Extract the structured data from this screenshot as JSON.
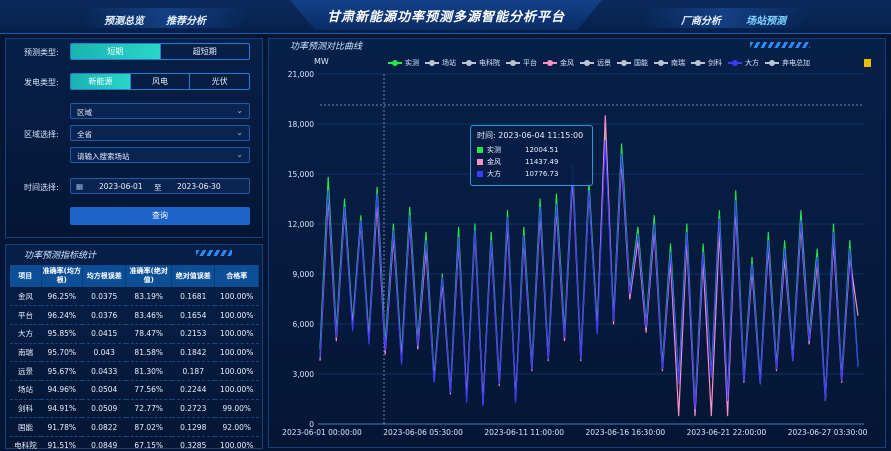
{
  "header": {
    "title": "甘肃新能源功率预测多源智能分析平台",
    "nav_left": [
      "预测总览",
      "推荐分析"
    ],
    "nav_right": [
      "厂商分析",
      "场站预测"
    ],
    "active_tab": "场站预测"
  },
  "form": {
    "forecast_type_label": "预测类型:",
    "forecast_types": [
      "短期",
      "超短期"
    ],
    "gen_type_label": "发电类型:",
    "gen_types": [
      "新能源",
      "风电",
      "光伏"
    ],
    "region_label": "区域选择:",
    "region_select1": "区域",
    "region_select2": "全省",
    "station_placeholder": "请输入搜索场站",
    "time_label": "时间选择:",
    "date_start": "2023-06-01",
    "date_sep": "至",
    "date_end": "2023-06-30",
    "query_label": "查询"
  },
  "stats": {
    "title": "功率预测指标统计",
    "headers": [
      "项目",
      "准确率(均方根)",
      "均方根误差",
      "准确率(绝对值)",
      "绝对值误差",
      "合格率"
    ],
    "rows": [
      [
        "金风",
        "96.25%",
        "0.0375",
        "83.19%",
        "0.1681",
        "100.00%"
      ],
      [
        "平台",
        "96.24%",
        "0.0376",
        "83.46%",
        "0.1654",
        "100.00%"
      ],
      [
        "大方",
        "95.85%",
        "0.0415",
        "78.47%",
        "0.2153",
        "100.00%"
      ],
      [
        "南瑞",
        "95.70%",
        "0.043",
        "81.58%",
        "0.1842",
        "100.00%"
      ],
      [
        "远景",
        "95.67%",
        "0.0433",
        "81.30%",
        "0.187",
        "100.00%"
      ],
      [
        "场站",
        "94.96%",
        "0.0504",
        "77.56%",
        "0.2244",
        "100.00%"
      ],
      [
        "剑科",
        "94.91%",
        "0.0509",
        "72.77%",
        "0.2723",
        "99.00%"
      ],
      [
        "国能",
        "91.78%",
        "0.0822",
        "87.02%",
        "0.1298",
        "92.00%"
      ],
      [
        "电科院",
        "91.51%",
        "0.0849",
        "67.15%",
        "0.3285",
        "100.00%"
      ]
    ]
  },
  "chart_panel": {
    "title": "功率预测对比曲线",
    "unit": "MW",
    "legend": [
      {
        "name": "实测",
        "color": "#22e64a"
      },
      {
        "name": "场站",
        "color": "#b9c3d6"
      },
      {
        "name": "电科院",
        "color": "#b9c3d6"
      },
      {
        "name": "平台",
        "color": "#b9c3d6"
      },
      {
        "name": "金风",
        "color": "#ff8fc8"
      },
      {
        "name": "远景",
        "color": "#b9c3d6"
      },
      {
        "name": "国能",
        "color": "#b9c3d6"
      },
      {
        "name": "南瑞",
        "color": "#b9c3d6"
      },
      {
        "name": "剑科",
        "color": "#b9c3d6"
      },
      {
        "name": "大方",
        "color": "#3b3bff"
      },
      {
        "name": "弃电总加",
        "color": "#b9c3d6"
      }
    ],
    "tooltip": {
      "time": "时间: 2023-06-04 11:15:00",
      "rows": [
        {
          "name": "实测",
          "value": "12004.51",
          "color": "#22e64a"
        },
        {
          "name": "金风",
          "value": "11437.49",
          "color": "#ff8fc8"
        },
        {
          "name": "大方",
          "value": "10776.73",
          "color": "#3b3bff"
        }
      ]
    }
  },
  "chart_data": {
    "type": "line",
    "ylim": [
      0,
      21000
    ],
    "yticks": [
      "0",
      "3,000",
      "6,000",
      "9,000",
      "12,000",
      "15,000",
      "18,000",
      "21,000"
    ],
    "xticks": [
      "2023-06-01 00:00:00",
      "2023-06-06 05:30:00",
      "2023-06-11 11:00:00",
      "2023-06-16 16:30:00",
      "2023-06-21 22:00:00",
      "2023-06-27 03:30:00"
    ],
    "ylabel": "MW",
    "series": [
      {
        "name": "实测",
        "color": "#22e64a",
        "values": [
          4500,
          14800,
          5500,
          13500,
          6000,
          12500,
          5200,
          14200,
          4800,
          12000,
          4000,
          13000,
          5000,
          11500,
          2800,
          9000,
          2000,
          11800,
          1500,
          12000,
          1200,
          11500,
          2500,
          12800,
          1400,
          11800,
          3500,
          13500,
          4000,
          13800,
          5500,
          15500,
          4000,
          14500,
          5800,
          17500,
          6500,
          16800,
          8000,
          11800,
          6000,
          12500,
          3500,
          10800,
          2600,
          12000,
          1000,
          10800,
          3000,
          12800,
          1500,
          14000,
          2800,
          10000,
          2600,
          11500,
          3500,
          11000,
          4000,
          12800,
          5200,
          10500,
          1500,
          12000,
          2800,
          11000,
          3500
        ]
      },
      {
        "name": "金风",
        "color": "#ff8fc8",
        "values": [
          3800,
          13600,
          5000,
          12800,
          5800,
          12000,
          5000,
          13200,
          4200,
          11200,
          3800,
          12200,
          4500,
          10500,
          2600,
          8500,
          1800,
          10900,
          1600,
          11400,
          1300,
          10800,
          2300,
          12000,
          1500,
          11000,
          3200,
          12600,
          3800,
          12900,
          5000,
          14800,
          3800,
          13900,
          5500,
          18500,
          6000,
          15800,
          7500,
          11000,
          5500,
          11600,
          3200,
          9800,
          500,
          11000,
          500,
          9800,
          500,
          11600,
          500,
          12900,
          2500,
          9200,
          2400,
          10600,
          3200,
          10000,
          3800,
          11800,
          4800,
          9600,
          1400,
          11000,
          2500,
          10000,
          6500
        ]
      },
      {
        "name": "大方",
        "color": "#3b3bff",
        "values": [
          4000,
          14000,
          5200,
          13000,
          5600,
          12200,
          4800,
          13800,
          4400,
          11600,
          3600,
          12500,
          4700,
          11000,
          2500,
          8800,
          1900,
          11200,
          1300,
          11600,
          1100,
          11000,
          2400,
          12400,
          1300,
          11300,
          3300,
          13000,
          3900,
          13200,
          5200,
          15200,
          3900,
          14000,
          5400,
          17000,
          6200,
          16200,
          7800,
          11400,
          5800,
          12000,
          3300,
          10300,
          2400,
          11500,
          900,
          10300,
          2800,
          12300,
          1400,
          13400,
          2600,
          9600,
          2400,
          11000,
          3300,
          10500,
          3800,
          12200,
          5000,
          10000,
          1400,
          11500,
          2600,
          10500,
          3400
        ]
      }
    ]
  }
}
